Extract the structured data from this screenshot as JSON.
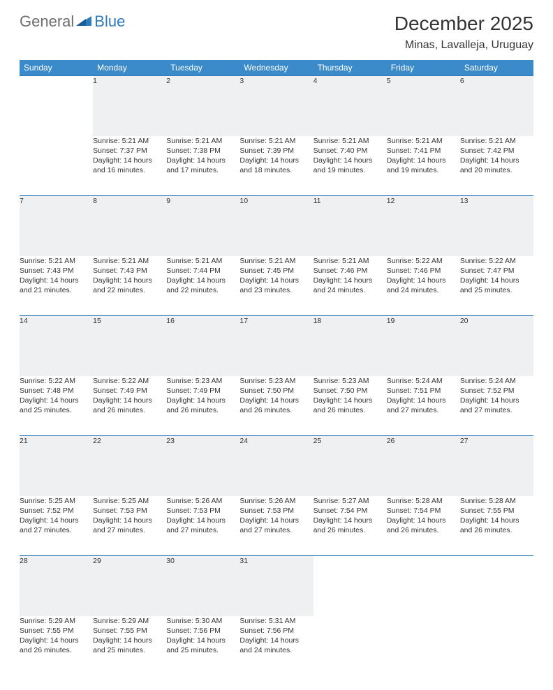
{
  "logo": {
    "text1": "General",
    "text2": "Blue"
  },
  "title": "December 2025",
  "location": "Minas, Lavalleja, Uruguay",
  "colors": {
    "header_bg": "#3b8bca",
    "header_text": "#ffffff",
    "daynum_bg": "#eef0f2",
    "rule": "#2f7bbf",
    "body_text": "#333333",
    "logo_gray": "#6e6e6e",
    "logo_blue": "#2f7bbf",
    "page_bg": "#ffffff"
  },
  "week_headers": [
    "Sunday",
    "Monday",
    "Tuesday",
    "Wednesday",
    "Thursday",
    "Friday",
    "Saturday"
  ],
  "weeks": [
    [
      null,
      {
        "n": "1",
        "sr": "Sunrise: 5:21 AM",
        "ss": "Sunset: 7:37 PM",
        "d1": "Daylight: 14 hours",
        "d2": "and 16 minutes."
      },
      {
        "n": "2",
        "sr": "Sunrise: 5:21 AM",
        "ss": "Sunset: 7:38 PM",
        "d1": "Daylight: 14 hours",
        "d2": "and 17 minutes."
      },
      {
        "n": "3",
        "sr": "Sunrise: 5:21 AM",
        "ss": "Sunset: 7:39 PM",
        "d1": "Daylight: 14 hours",
        "d2": "and 18 minutes."
      },
      {
        "n": "4",
        "sr": "Sunrise: 5:21 AM",
        "ss": "Sunset: 7:40 PM",
        "d1": "Daylight: 14 hours",
        "d2": "and 19 minutes."
      },
      {
        "n": "5",
        "sr": "Sunrise: 5:21 AM",
        "ss": "Sunset: 7:41 PM",
        "d1": "Daylight: 14 hours",
        "d2": "and 19 minutes."
      },
      {
        "n": "6",
        "sr": "Sunrise: 5:21 AM",
        "ss": "Sunset: 7:42 PM",
        "d1": "Daylight: 14 hours",
        "d2": "and 20 minutes."
      }
    ],
    [
      {
        "n": "7",
        "sr": "Sunrise: 5:21 AM",
        "ss": "Sunset: 7:43 PM",
        "d1": "Daylight: 14 hours",
        "d2": "and 21 minutes."
      },
      {
        "n": "8",
        "sr": "Sunrise: 5:21 AM",
        "ss": "Sunset: 7:43 PM",
        "d1": "Daylight: 14 hours",
        "d2": "and 22 minutes."
      },
      {
        "n": "9",
        "sr": "Sunrise: 5:21 AM",
        "ss": "Sunset: 7:44 PM",
        "d1": "Daylight: 14 hours",
        "d2": "and 22 minutes."
      },
      {
        "n": "10",
        "sr": "Sunrise: 5:21 AM",
        "ss": "Sunset: 7:45 PM",
        "d1": "Daylight: 14 hours",
        "d2": "and 23 minutes."
      },
      {
        "n": "11",
        "sr": "Sunrise: 5:21 AM",
        "ss": "Sunset: 7:46 PM",
        "d1": "Daylight: 14 hours",
        "d2": "and 24 minutes."
      },
      {
        "n": "12",
        "sr": "Sunrise: 5:22 AM",
        "ss": "Sunset: 7:46 PM",
        "d1": "Daylight: 14 hours",
        "d2": "and 24 minutes."
      },
      {
        "n": "13",
        "sr": "Sunrise: 5:22 AM",
        "ss": "Sunset: 7:47 PM",
        "d1": "Daylight: 14 hours",
        "d2": "and 25 minutes."
      }
    ],
    [
      {
        "n": "14",
        "sr": "Sunrise: 5:22 AM",
        "ss": "Sunset: 7:48 PM",
        "d1": "Daylight: 14 hours",
        "d2": "and 25 minutes."
      },
      {
        "n": "15",
        "sr": "Sunrise: 5:22 AM",
        "ss": "Sunset: 7:49 PM",
        "d1": "Daylight: 14 hours",
        "d2": "and 26 minutes."
      },
      {
        "n": "16",
        "sr": "Sunrise: 5:23 AM",
        "ss": "Sunset: 7:49 PM",
        "d1": "Daylight: 14 hours",
        "d2": "and 26 minutes."
      },
      {
        "n": "17",
        "sr": "Sunrise: 5:23 AM",
        "ss": "Sunset: 7:50 PM",
        "d1": "Daylight: 14 hours",
        "d2": "and 26 minutes."
      },
      {
        "n": "18",
        "sr": "Sunrise: 5:23 AM",
        "ss": "Sunset: 7:50 PM",
        "d1": "Daylight: 14 hours",
        "d2": "and 26 minutes."
      },
      {
        "n": "19",
        "sr": "Sunrise: 5:24 AM",
        "ss": "Sunset: 7:51 PM",
        "d1": "Daylight: 14 hours",
        "d2": "and 27 minutes."
      },
      {
        "n": "20",
        "sr": "Sunrise: 5:24 AM",
        "ss": "Sunset: 7:52 PM",
        "d1": "Daylight: 14 hours",
        "d2": "and 27 minutes."
      }
    ],
    [
      {
        "n": "21",
        "sr": "Sunrise: 5:25 AM",
        "ss": "Sunset: 7:52 PM",
        "d1": "Daylight: 14 hours",
        "d2": "and 27 minutes."
      },
      {
        "n": "22",
        "sr": "Sunrise: 5:25 AM",
        "ss": "Sunset: 7:53 PM",
        "d1": "Daylight: 14 hours",
        "d2": "and 27 minutes."
      },
      {
        "n": "23",
        "sr": "Sunrise: 5:26 AM",
        "ss": "Sunset: 7:53 PM",
        "d1": "Daylight: 14 hours",
        "d2": "and 27 minutes."
      },
      {
        "n": "24",
        "sr": "Sunrise: 5:26 AM",
        "ss": "Sunset: 7:53 PM",
        "d1": "Daylight: 14 hours",
        "d2": "and 27 minutes."
      },
      {
        "n": "25",
        "sr": "Sunrise: 5:27 AM",
        "ss": "Sunset: 7:54 PM",
        "d1": "Daylight: 14 hours",
        "d2": "and 26 minutes."
      },
      {
        "n": "26",
        "sr": "Sunrise: 5:28 AM",
        "ss": "Sunset: 7:54 PM",
        "d1": "Daylight: 14 hours",
        "d2": "and 26 minutes."
      },
      {
        "n": "27",
        "sr": "Sunrise: 5:28 AM",
        "ss": "Sunset: 7:55 PM",
        "d1": "Daylight: 14 hours",
        "d2": "and 26 minutes."
      }
    ],
    [
      {
        "n": "28",
        "sr": "Sunrise: 5:29 AM",
        "ss": "Sunset: 7:55 PM",
        "d1": "Daylight: 14 hours",
        "d2": "and 26 minutes."
      },
      {
        "n": "29",
        "sr": "Sunrise: 5:29 AM",
        "ss": "Sunset: 7:55 PM",
        "d1": "Daylight: 14 hours",
        "d2": "and 25 minutes."
      },
      {
        "n": "30",
        "sr": "Sunrise: 5:30 AM",
        "ss": "Sunset: 7:56 PM",
        "d1": "Daylight: 14 hours",
        "d2": "and 25 minutes."
      },
      {
        "n": "31",
        "sr": "Sunrise: 5:31 AM",
        "ss": "Sunset: 7:56 PM",
        "d1": "Daylight: 14 hours",
        "d2": "and 24 minutes."
      },
      null,
      null,
      null
    ]
  ]
}
